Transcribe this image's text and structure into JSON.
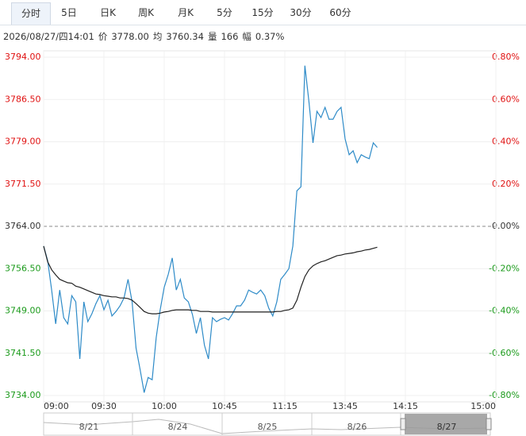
{
  "tabs": [
    "分时",
    "5日",
    "日K",
    "周K",
    "月K",
    "5分",
    "15分",
    "30分",
    "60分"
  ],
  "info": [
    "2026/08/27/四14:01",
    "价",
    "3778.00",
    "均",
    "3760.34",
    "量",
    "166",
    "幅",
    "0.37%"
  ],
  "chart_data": {
    "type": "line",
    "x": [
      0,
      2,
      4,
      6,
      8,
      10,
      12,
      14,
      16,
      18,
      20,
      22,
      24,
      26,
      28,
      30,
      32,
      34,
      36,
      38,
      40,
      42,
      44,
      46,
      48,
      50,
      52,
      54,
      56,
      58,
      60,
      62,
      64,
      66,
      68,
      70,
      72,
      74,
      76,
      78,
      80,
      82,
      84,
      86,
      88,
      90,
      92,
      94,
      96,
      98,
      100,
      102,
      104,
      106,
      108,
      110,
      112,
      114,
      116,
      118,
      120,
      122,
      124,
      126,
      128,
      130,
      132,
      134,
      136,
      138,
      140,
      142,
      144,
      146,
      148,
      150,
      152,
      154,
      156,
      158,
      160,
      162,
      164,
      166
    ],
    "series": [
      {
        "color": "#2e8bc8",
        "values": [
          3760.5,
          3757.9,
          3752.7,
          3746.7,
          3752.7,
          3747.8,
          3746.7,
          3751.7,
          3750.6,
          3740.5,
          3750.6,
          3747.1,
          3748.5,
          3750.3,
          3751.7,
          3749.2,
          3750.9,
          3748.1,
          3748.9,
          3749.9,
          3751.3,
          3754.6,
          3750.6,
          3742.4,
          3738.6,
          3734.5,
          3737.2,
          3736.8,
          3744.3,
          3749.2,
          3753.2,
          3755.5,
          3758.4,
          3752.7,
          3754.6,
          3751.3,
          3750.6,
          3748.4,
          3745.0,
          3747.8,
          3742.9,
          3740.5,
          3747.8,
          3747.1,
          3747.5,
          3747.8,
          3747.4,
          3748.5,
          3749.9,
          3749.9,
          3750.9,
          3752.7,
          3752.3,
          3752.0,
          3752.7,
          3751.7,
          3749.5,
          3748.1,
          3750.6,
          3754.6,
          3755.5,
          3756.5,
          3760.5,
          3770.3,
          3771.0,
          3792.5,
          3786.1,
          3778.8,
          3784.4,
          3783.3,
          3785.1,
          3783.0,
          3783.0,
          3784.4,
          3785.1,
          3779.5,
          3776.7,
          3777.4,
          3775.3,
          3776.7,
          3776.3,
          3776.0,
          3778.8,
          3778.0
        ]
      },
      {
        "color": "#222222",
        "values": [
          3760.5,
          3757.7,
          3756.3,
          3755.4,
          3754.6,
          3754.3,
          3754.0,
          3753.9,
          3753.4,
          3753.2,
          3752.9,
          3752.6,
          3752.3,
          3752.0,
          3751.9,
          3751.7,
          3751.6,
          3751.5,
          3751.5,
          3751.3,
          3751.3,
          3751.2,
          3750.9,
          3750.3,
          3749.6,
          3748.9,
          3748.6,
          3748.5,
          3748.5,
          3748.6,
          3748.8,
          3748.9,
          3749.1,
          3749.2,
          3749.2,
          3749.2,
          3749.2,
          3749.1,
          3749.1,
          3748.9,
          3748.9,
          3748.9,
          3748.8,
          3748.8,
          3748.8,
          3748.8,
          3748.8,
          3748.8,
          3748.8,
          3748.8,
          3748.8,
          3748.8,
          3748.8,
          3748.8,
          3748.8,
          3748.8,
          3748.8,
          3748.8,
          3748.9,
          3748.9,
          3749.1,
          3749.2,
          3749.5,
          3750.9,
          3753.2,
          3755.1,
          3756.3,
          3757.0,
          3757.4,
          3757.7,
          3757.9,
          3758.2,
          3758.5,
          3758.8,
          3758.9,
          3759.1,
          3759.2,
          3759.3,
          3759.5,
          3759.6,
          3759.8,
          3759.9,
          3760.1,
          3760.3
        ]
      }
    ],
    "xlim": [
      0,
      225
    ],
    "xticks": [
      {
        "value": 0,
        "label": "09:00"
      },
      {
        "value": 30,
        "label": "09:30"
      },
      {
        "value": 60,
        "label": "10:00"
      },
      {
        "value": 90,
        "label": "10:45"
      },
      {
        "value": 120,
        "label": "11:15"
      },
      {
        "value": 150,
        "label": "13:45"
      },
      {
        "value": 180,
        "label": "14:15"
      },
      {
        "value": 225,
        "label": "15:00"
      }
    ],
    "ylim": [
      3734,
      3794
    ],
    "yticks": [
      {
        "value": 3794,
        "label": "3794.00"
      },
      {
        "value": 3786.5,
        "label": "3786.50"
      },
      {
        "value": 3779,
        "label": "3779.00"
      },
      {
        "value": 3771.5,
        "label": "3771.50"
      },
      {
        "value": 3764,
        "label": "3764.00"
      },
      {
        "value": 3756.5,
        "label": "3756.50"
      },
      {
        "value": 3749,
        "label": "3749.00"
      },
      {
        "value": 3741.5,
        "label": "3741.50"
      },
      {
        "value": 3734,
        "label": "3734.00"
      }
    ],
    "y2lim": [
      -0.8,
      0.8
    ],
    "y2ticks": [
      {
        "value": 0.8,
        "label": "0.80%"
      },
      {
        "value": 0.6,
        "label": "0.60%"
      },
      {
        "value": 0.4,
        "label": "0.40%"
      },
      {
        "value": 0.2,
        "label": "0.20%"
      },
      {
        "value": 0,
        "label": "0.00%"
      },
      {
        "value": -0.2,
        "label": "-0.20%"
      },
      {
        "value": -0.4,
        "label": "-0.40%"
      },
      {
        "value": -0.6,
        "label": "-0.60%"
      },
      {
        "value": -0.8,
        "label": "-0.80%"
      }
    ],
    "up_color": "#e01010",
    "down_color": "#1a9a1a",
    "flat_color": "#333333",
    "grid": true
  },
  "navigator": [
    "8/21",
    "8/24",
    "8/25",
    "8/26",
    "8/27"
  ]
}
